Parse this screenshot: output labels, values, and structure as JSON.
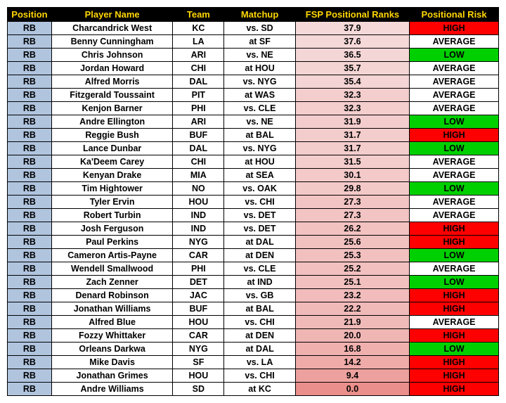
{
  "columns": [
    "Position",
    "Player Name",
    "Team",
    "Matchup",
    "FSP Positional Ranks",
    "Positional Risk"
  ],
  "col_classes": [
    "col-pos",
    "col-name",
    "col-team",
    "col-match",
    "col-rank",
    "col-risk"
  ],
  "header_bg": "#000000",
  "header_fg": "#ffd700",
  "pos_bg": "#b0c4de",
  "risk_colors": {
    "HIGH": "#ff0000",
    "LOW": "#00d000",
    "AVERAGE": "#ffffff"
  },
  "rank_gradient": {
    "max_color": "#f5d9d9",
    "min_color": "#ea8f8b",
    "max_val": 37.9,
    "min_val": 0.0
  },
  "rows": [
    {
      "pos": "RB",
      "name": "Charcandrick West",
      "team": "KC",
      "match": "vs.  SD",
      "rank": 37.9,
      "risk": "HIGH"
    },
    {
      "pos": "RB",
      "name": "Benny Cunningham",
      "team": "LA",
      "match": "at  SF",
      "rank": 37.6,
      "risk": "AVERAGE"
    },
    {
      "pos": "RB",
      "name": "Chris Johnson",
      "team": "ARI",
      "match": "vs.  NE",
      "rank": 36.5,
      "risk": "LOW"
    },
    {
      "pos": "RB",
      "name": "Jordan Howard",
      "team": "CHI",
      "match": "at  HOU",
      "rank": 35.7,
      "risk": "AVERAGE"
    },
    {
      "pos": "RB",
      "name": "Alfred Morris",
      "team": "DAL",
      "match": "vs.  NYG",
      "rank": 35.4,
      "risk": "AVERAGE"
    },
    {
      "pos": "RB",
      "name": "Fitzgerald Toussaint",
      "team": "PIT",
      "match": "at  WAS",
      "rank": 32.3,
      "risk": "AVERAGE"
    },
    {
      "pos": "RB",
      "name": "Kenjon Barner",
      "team": "PHI",
      "match": "vs.  CLE",
      "rank": 32.3,
      "risk": "AVERAGE"
    },
    {
      "pos": "RB",
      "name": "Andre Ellington",
      "team": "ARI",
      "match": "vs.  NE",
      "rank": 31.9,
      "risk": "LOW"
    },
    {
      "pos": "RB",
      "name": "Reggie Bush",
      "team": "BUF",
      "match": "at  BAL",
      "rank": 31.7,
      "risk": "HIGH"
    },
    {
      "pos": "RB",
      "name": "Lance Dunbar",
      "team": "DAL",
      "match": "vs.  NYG",
      "rank": 31.7,
      "risk": "LOW"
    },
    {
      "pos": "RB",
      "name": "Ka'Deem Carey",
      "team": "CHI",
      "match": "at  HOU",
      "rank": 31.5,
      "risk": "AVERAGE"
    },
    {
      "pos": "RB",
      "name": "Kenyan Drake",
      "team": "MIA",
      "match": "at  SEA",
      "rank": 30.1,
      "risk": "AVERAGE"
    },
    {
      "pos": "RB",
      "name": "Tim Hightower",
      "team": "NO",
      "match": "vs.  OAK",
      "rank": 29.8,
      "risk": "LOW"
    },
    {
      "pos": "RB",
      "name": "Tyler Ervin",
      "team": "HOU",
      "match": "vs.  CHI",
      "rank": 27.3,
      "risk": "AVERAGE"
    },
    {
      "pos": "RB",
      "name": "Robert Turbin",
      "team": "IND",
      "match": "vs.  DET",
      "rank": 27.3,
      "risk": "AVERAGE"
    },
    {
      "pos": "RB",
      "name": "Josh Ferguson",
      "team": "IND",
      "match": "vs.  DET",
      "rank": 26.2,
      "risk": "HIGH"
    },
    {
      "pos": "RB",
      "name": "Paul Perkins",
      "team": "NYG",
      "match": "at  DAL",
      "rank": 25.6,
      "risk": "HIGH"
    },
    {
      "pos": "RB",
      "name": "Cameron Artis-Payne",
      "team": "CAR",
      "match": "at  DEN",
      "rank": 25.3,
      "risk": "LOW"
    },
    {
      "pos": "RB",
      "name": "Wendell Smallwood",
      "team": "PHI",
      "match": "vs.  CLE",
      "rank": 25.2,
      "risk": "AVERAGE"
    },
    {
      "pos": "RB",
      "name": "Zach Zenner",
      "team": "DET",
      "match": "at  IND",
      "rank": 25.1,
      "risk": "LOW"
    },
    {
      "pos": "RB",
      "name": "Denard Robinson",
      "team": "JAC",
      "match": "vs.  GB",
      "rank": 23.2,
      "risk": "HIGH"
    },
    {
      "pos": "RB",
      "name": "Jonathan Williams",
      "team": "BUF",
      "match": "at  BAL",
      "rank": 22.2,
      "risk": "HIGH"
    },
    {
      "pos": "RB",
      "name": "Alfred Blue",
      "team": "HOU",
      "match": "vs.  CHI",
      "rank": 21.9,
      "risk": "AVERAGE"
    },
    {
      "pos": "RB",
      "name": "Fozzy Whittaker",
      "team": "CAR",
      "match": "at  DEN",
      "rank": 20.0,
      "risk": "HIGH"
    },
    {
      "pos": "RB",
      "name": "Orleans Darkwa",
      "team": "NYG",
      "match": "at  DAL",
      "rank": 16.8,
      "risk": "LOW"
    },
    {
      "pos": "RB",
      "name": "Mike Davis",
      "team": "SF",
      "match": "vs.  LA",
      "rank": 14.2,
      "risk": "HIGH"
    },
    {
      "pos": "RB",
      "name": "Jonathan Grimes",
      "team": "HOU",
      "match": "vs.  CHI",
      "rank": 9.4,
      "risk": "HIGH"
    },
    {
      "pos": "RB",
      "name": "Andre Williams",
      "team": "SD",
      "match": "at  KC",
      "rank": 0.0,
      "risk": "HIGH"
    }
  ]
}
